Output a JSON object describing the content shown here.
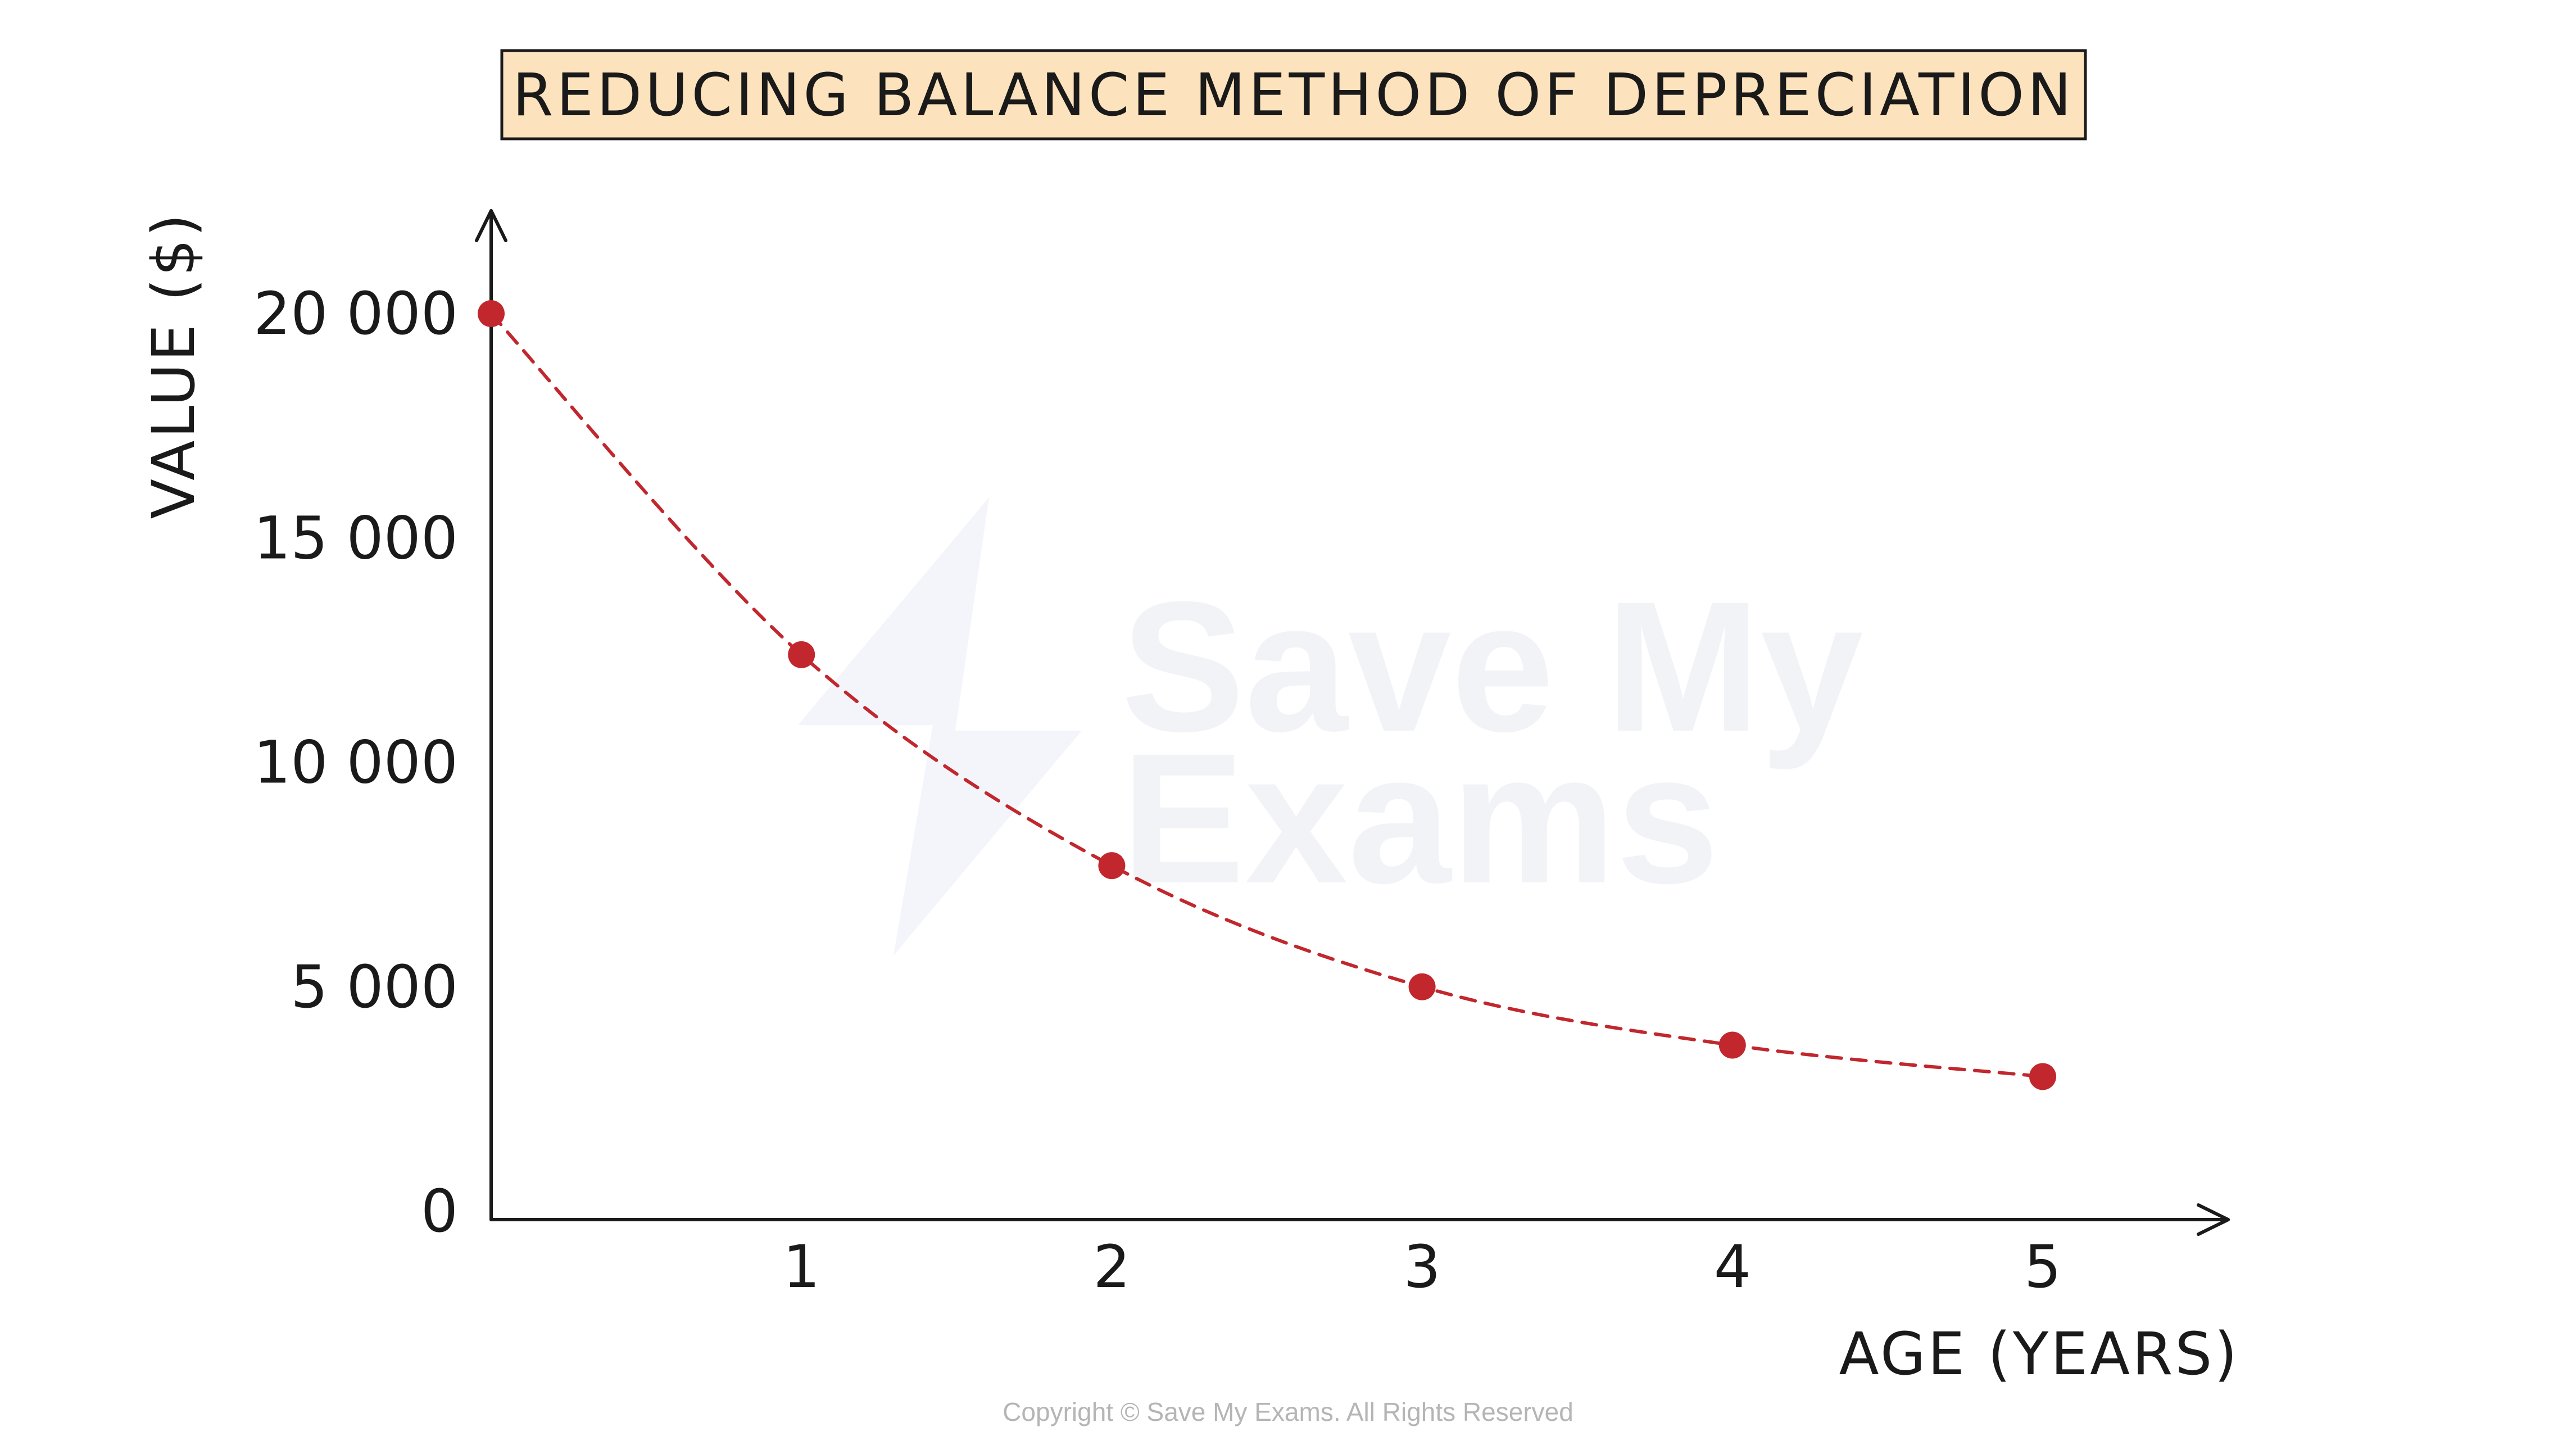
{
  "chart_data": {
    "type": "line",
    "title": "REDUCING BALANCE METHOD OF DEPRECIATION",
    "xlabel": "AGE (YEARS)",
    "ylabel": "VALUE ($)",
    "x": [
      0,
      1,
      2,
      3,
      4,
      5
    ],
    "x_tick_labels": [
      "1",
      "2",
      "3",
      "4",
      "5"
    ],
    "x_tick_values": [
      1,
      2,
      3,
      4,
      5
    ],
    "y_tick_labels": [
      "0",
      "5 000",
      "10 000",
      "15 000",
      "20 000"
    ],
    "y_tick_values": [
      0,
      5000,
      10000,
      15000,
      20000
    ],
    "series": [
      {
        "values": [
          20000,
          12400,
          7700,
          5000,
          3700,
          3000
        ]
      }
    ],
    "xlim": [
      0,
      5
    ],
    "ylim": [
      0,
      20000
    ],
    "grid": false,
    "line_style": "dashed",
    "point_color": "#c1272d",
    "line_color": "#c1272d",
    "title_background": "#fde3bd"
  },
  "watermark": {
    "line1": "Save My",
    "line2": "Exams"
  },
  "footer": {
    "copyright": "Copyright © Save My Exams. All Rights Reserved"
  }
}
